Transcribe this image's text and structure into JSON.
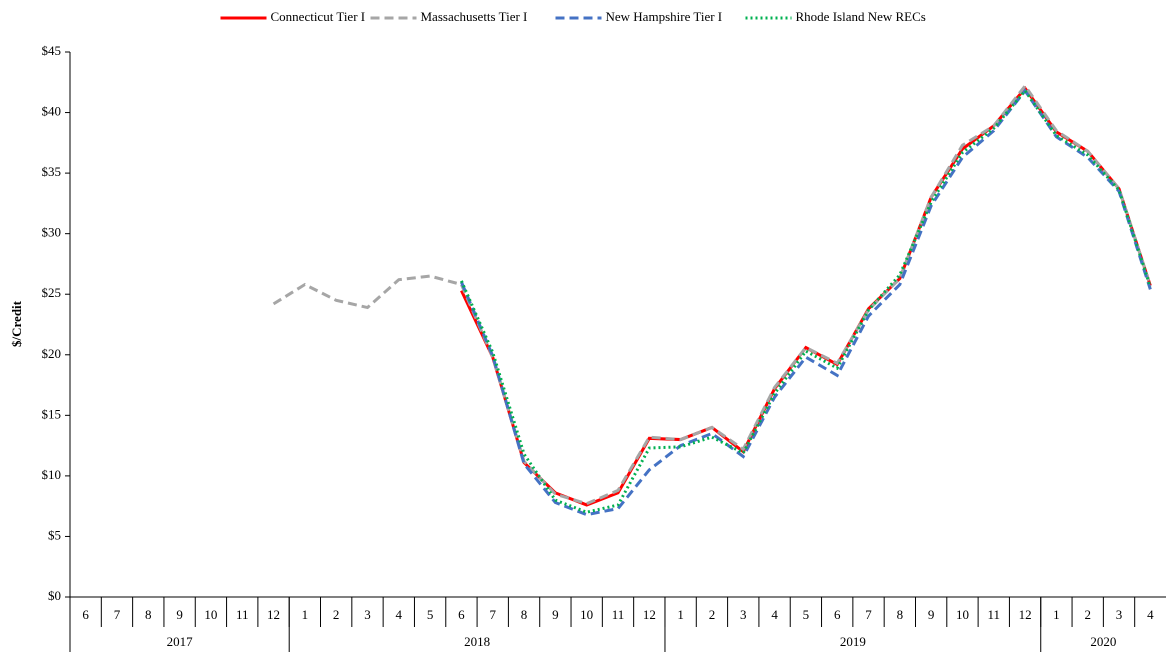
{
  "chart_data": {
    "type": "line",
    "ylabel": "$/Credit",
    "categories": [
      "6",
      "7",
      "8",
      "9",
      "10",
      "11",
      "12",
      "1",
      "2",
      "3",
      "4",
      "5",
      "6",
      "7",
      "8",
      "9",
      "10",
      "11",
      "12",
      "1",
      "2",
      "3",
      "4",
      "5",
      "6",
      "7",
      "8",
      "9",
      "10",
      "11",
      "12",
      "1",
      "2",
      "3",
      "4"
    ],
    "x_groups": [
      "2017",
      "2018",
      "2019",
      "2020"
    ],
    "ylim": [
      0,
      45
    ],
    "yticks": [
      {
        "value": 0,
        "label": "$0"
      },
      {
        "value": 5,
        "label": "$5"
      },
      {
        "value": 10,
        "label": "$10"
      },
      {
        "value": 15,
        "label": "$15"
      },
      {
        "value": 20,
        "label": "$20"
      },
      {
        "value": 25,
        "label": "$25"
      },
      {
        "value": 30,
        "label": "$30"
      },
      {
        "value": 35,
        "label": "$35"
      },
      {
        "value": 40,
        "label": "$40"
      },
      {
        "value": 45,
        "label": "$45"
      }
    ],
    "grid": false,
    "legend": "top",
    "series": [
      {
        "name": "Connecticut Tier I",
        "color": "#ff0000",
        "style": "solid",
        "values": [
          null,
          null,
          null,
          null,
          null,
          null,
          null,
          null,
          null,
          null,
          null,
          null,
          25.3,
          19.8,
          11.1,
          8.6,
          7.6,
          8.6,
          13.1,
          13.0,
          14.0,
          12.0,
          17.2,
          20.6,
          19.2,
          23.8,
          26.3,
          33.0,
          37.0,
          38.9,
          42.0,
          38.4,
          36.8,
          33.7,
          25.7
        ]
      },
      {
        "name": "Massachusetts Tier I",
        "color": "#a6a6a6",
        "style": "dashed",
        "values": [
          null,
          null,
          null,
          null,
          null,
          null,
          24.2,
          25.8,
          24.5,
          23.9,
          26.2,
          26.5,
          25.8,
          19.8,
          11.2,
          8.5,
          7.7,
          8.8,
          13.2,
          13.0,
          14.0,
          12.2,
          17.3,
          20.6,
          19.3,
          23.7,
          26.3,
          33.0,
          37.3,
          38.9,
          42.2,
          38.5,
          36.8,
          33.7,
          25.7
        ]
      },
      {
        "name": "New Hampshire Tier I",
        "color": "#4472c4",
        "style": "dashed",
        "values": [
          null,
          null,
          null,
          null,
          null,
          null,
          null,
          null,
          null,
          null,
          null,
          null,
          26.0,
          19.9,
          11.0,
          7.8,
          6.8,
          7.3,
          10.5,
          12.5,
          13.5,
          11.6,
          16.5,
          19.8,
          18.3,
          23.2,
          25.8,
          32.3,
          36.3,
          38.5,
          41.8,
          38.0,
          36.3,
          33.5,
          25.4
        ]
      },
      {
        "name": "Rhode Island New RECs",
        "color": "#00b050",
        "style": "dotted",
        "values": [
          null,
          null,
          null,
          null,
          null,
          null,
          null,
          null,
          null,
          null,
          null,
          null,
          26.1,
          20.2,
          11.8,
          8.0,
          7.0,
          7.6,
          12.3,
          12.4,
          13.2,
          11.9,
          16.8,
          20.3,
          18.9,
          23.7,
          26.6,
          32.6,
          36.7,
          38.7,
          41.8,
          38.1,
          36.5,
          33.6,
          25.6
        ]
      }
    ]
  }
}
